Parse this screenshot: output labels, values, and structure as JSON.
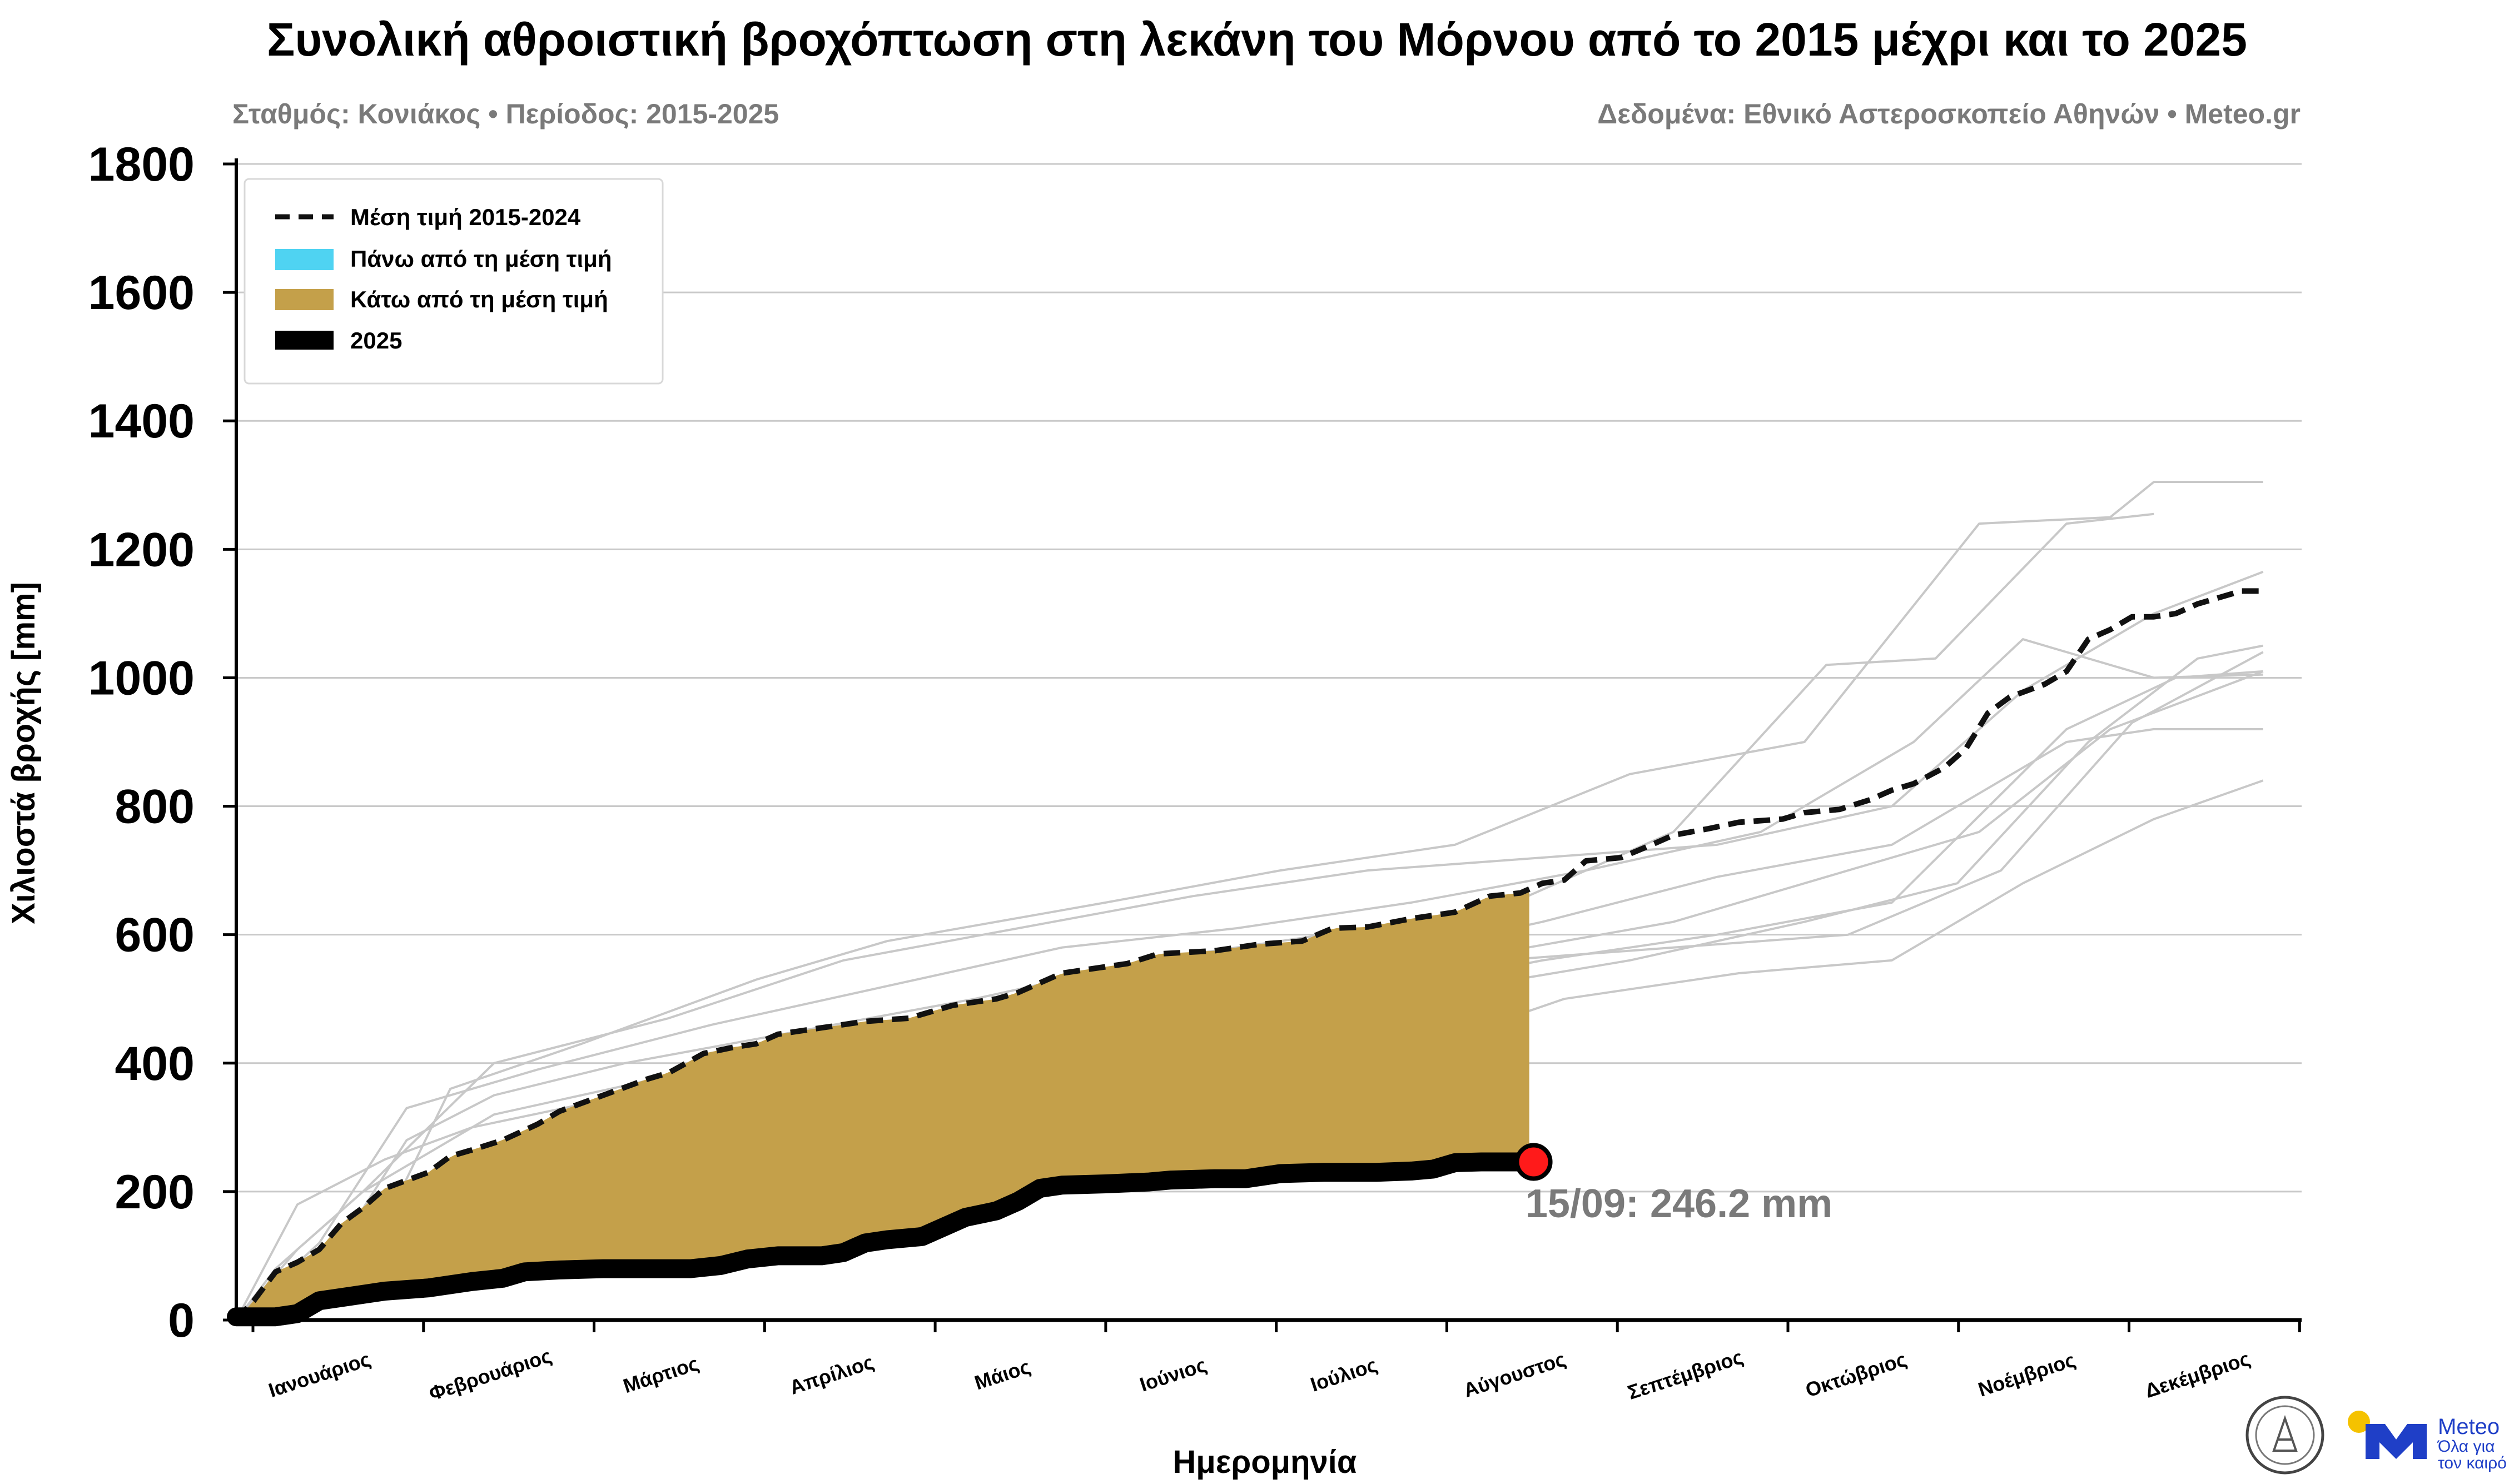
{
  "chart_data": {
    "type": "line",
    "title": "Συνολική αθροιστική βροχόπτωση στη λεκάνη του Μόρνου από το 2015 μέχρι και το 2025",
    "subtitle_left": "Σταθμός: Κονιάκος • Περίοδος: 2015-2025",
    "subtitle_right": "Δεδομένα: Εθνικό Αστεροσκοπείο Αθηνών • Meteo.gr",
    "xlabel": "Ημερομηνία",
    "ylabel": "Χιλιοστά βροχής [mm]",
    "ylim": [
      0,
      1800
    ],
    "yticks": [
      0,
      200,
      400,
      600,
      800,
      1000,
      1200,
      1400,
      1600,
      1800
    ],
    "grid": true,
    "legend_position": "top-left",
    "months": [
      "Ιανουάριος",
      "Φεβρουάριος",
      "Μάρτιος",
      "Απρίλιος",
      "Μάιος",
      "Ιούνιος",
      "Ιούλιος",
      "Αύγουστος",
      "Σεπτέμβριος",
      "Οκτώβριος",
      "Νοέμβριος",
      "Δεκέμβριος"
    ],
    "legend": [
      {
        "label": "Μέση τιμή 2015-2024",
        "style": "dashed",
        "color": "#111111"
      },
      {
        "label": "Πάνω από τη μέση τιμή",
        "style": "patch",
        "color": "#4fd3f2"
      },
      {
        "label": "Κάτω από τη μέση τιμή",
        "style": "patch",
        "color": "#c4a04a"
      },
      {
        "label": "2025",
        "style": "thick",
        "color": "#000000"
      }
    ],
    "mean_series": {
      "name": "Μέση τιμή 2015-2024",
      "points": [
        [
          1,
          0
        ],
        [
          5,
          30
        ],
        [
          10,
          75
        ],
        [
          15,
          90
        ],
        [
          20,
          110
        ],
        [
          25,
          150
        ],
        [
          30,
          175
        ],
        [
          35,
          205
        ],
        [
          45,
          230
        ],
        [
          50,
          255
        ],
        [
          55,
          265
        ],
        [
          62,
          280
        ],
        [
          70,
          305
        ],
        [
          75,
          325
        ],
        [
          85,
          350
        ],
        [
          95,
          375
        ],
        [
          100,
          385
        ],
        [
          108,
          415
        ],
        [
          115,
          425
        ],
        [
          120,
          430
        ],
        [
          125,
          445
        ],
        [
          135,
          455
        ],
        [
          145,
          465
        ],
        [
          155,
          470
        ],
        [
          165,
          490
        ],
        [
          175,
          500
        ],
        [
          180,
          510
        ],
        [
          190,
          540
        ],
        [
          195,
          545
        ],
        [
          205,
          555
        ],
        [
          212,
          570
        ],
        [
          225,
          575
        ],
        [
          235,
          585
        ],
        [
          245,
          590
        ],
        [
          252,
          610
        ],
        [
          260,
          612
        ],
        [
          270,
          625
        ],
        [
          280,
          635
        ],
        [
          288,
          660
        ],
        [
          295,
          665
        ],
        [
          300,
          680
        ],
        [
          305,
          685
        ],
        [
          310,
          715
        ],
        [
          318,
          720
        ],
        [
          325,
          740
        ],
        [
          330,
          755
        ],
        [
          338,
          765
        ],
        [
          345,
          775
        ],
        [
          355,
          780
        ],
        [
          360,
          790
        ],
        [
          368,
          795
        ],
        [
          375,
          810
        ],
        [
          380,
          825
        ],
        [
          385,
          835
        ],
        [
          392,
          860
        ],
        [
          397,
          890
        ],
        [
          402,
          945
        ],
        [
          407,
          970
        ],
        [
          415,
          990
        ],
        [
          420,
          1010
        ],
        [
          425,
          1060
        ],
        [
          430,
          1075
        ],
        [
          435,
          1095
        ],
        [
          440,
          1095
        ],
        [
          445,
          1100
        ],
        [
          450,
          1115
        ],
        [
          455,
          1125
        ],
        [
          460,
          1135
        ],
        [
          465,
          1135
        ]
      ]
    },
    "series_2025": {
      "name": "2025",
      "points": [
        [
          1,
          5
        ],
        [
          10,
          5
        ],
        [
          15,
          10
        ],
        [
          20,
          30
        ],
        [
          30,
          40
        ],
        [
          35,
          45
        ],
        [
          45,
          50
        ],
        [
          50,
          55
        ],
        [
          55,
          60
        ],
        [
          62,
          65
        ],
        [
          67,
          75
        ],
        [
          75,
          78
        ],
        [
          85,
          80
        ],
        [
          95,
          80
        ],
        [
          105,
          80
        ],
        [
          112,
          85
        ],
        [
          118,
          95
        ],
        [
          125,
          100
        ],
        [
          135,
          100
        ],
        [
          140,
          105
        ],
        [
          145,
          120
        ],
        [
          150,
          125
        ],
        [
          158,
          130
        ],
        [
          163,
          145
        ],
        [
          168,
          160
        ],
        [
          175,
          170
        ],
        [
          180,
          185
        ],
        [
          185,
          205
        ],
        [
          190,
          210
        ],
        [
          200,
          212
        ],
        [
          210,
          215
        ],
        [
          215,
          218
        ],
        [
          225,
          220
        ],
        [
          232,
          220
        ],
        [
          237,
          225
        ],
        [
          240,
          228
        ],
        [
          250,
          230
        ],
        [
          262,
          230
        ],
        [
          270,
          232
        ],
        [
          275,
          235
        ],
        [
          280,
          245
        ],
        [
          286,
          246.2
        ],
        [
          298,
          246.2
        ]
      ]
    },
    "highlight": {
      "label": "15/09: 246.2 mm",
      "date": "15/09",
      "value": 246.2,
      "color": "#ff1a1a"
    },
    "past_years": [
      {
        "points": [
          [
            1,
            0
          ],
          [
            20,
            60
          ],
          [
            35,
            150
          ],
          [
            50,
            360
          ],
          [
            80,
            430
          ],
          [
            120,
            530
          ],
          [
            150,
            590
          ],
          [
            200,
            650
          ],
          [
            240,
            700
          ],
          [
            280,
            740
          ],
          [
            320,
            850
          ],
          [
            360,
            900
          ],
          [
            400,
            1240
          ],
          [
            430,
            1250
          ],
          [
            440,
            1305
          ],
          [
            465,
            1305
          ]
        ]
      },
      {
        "points": [
          [
            1,
            0
          ],
          [
            25,
            120
          ],
          [
            40,
            280
          ],
          [
            60,
            350
          ],
          [
            90,
            400
          ],
          [
            130,
            450
          ],
          [
            170,
            500
          ],
          [
            210,
            560
          ],
          [
            250,
            600
          ],
          [
            290,
            640
          ],
          [
            330,
            760
          ],
          [
            365,
            1020
          ],
          [
            390,
            1030
          ],
          [
            420,
            1240
          ],
          [
            440,
            1255
          ]
        ]
      },
      {
        "points": [
          [
            1,
            0
          ],
          [
            15,
            180
          ],
          [
            35,
            250
          ],
          [
            55,
            300
          ],
          [
            90,
            350
          ],
          [
            130,
            410
          ],
          [
            180,
            470
          ],
          [
            220,
            510
          ],
          [
            260,
            560
          ],
          [
            300,
            620
          ],
          [
            340,
            690
          ],
          [
            380,
            740
          ],
          [
            420,
            900
          ],
          [
            440,
            920
          ],
          [
            465,
            920
          ]
        ]
      },
      {
        "points": [
          [
            1,
            0
          ],
          [
            20,
            100
          ],
          [
            45,
            200
          ],
          [
            70,
            260
          ],
          [
            110,
            320
          ],
          [
            150,
            350
          ],
          [
            190,
            400
          ],
          [
            230,
            460
          ],
          [
            270,
            520
          ],
          [
            300,
            560
          ],
          [
            340,
            600
          ],
          [
            380,
            650
          ],
          [
            420,
            920
          ],
          [
            445,
            1000
          ],
          [
            465,
            1010
          ]
        ]
      },
      {
        "points": [
          [
            1,
            0
          ],
          [
            30,
            50
          ],
          [
            55,
            130
          ],
          [
            90,
            220
          ],
          [
            125,
            290
          ],
          [
            165,
            330
          ],
          [
            200,
            360
          ],
          [
            240,
            400
          ],
          [
            275,
            430
          ],
          [
            305,
            500
          ],
          [
            345,
            540
          ],
          [
            380,
            560
          ],
          [
            410,
            680
          ],
          [
            440,
            780
          ],
          [
            465,
            840
          ]
        ]
      },
      {
        "points": [
          [
            1,
            0
          ],
          [
            10,
            80
          ],
          [
            30,
            200
          ],
          [
            60,
            400
          ],
          [
            100,
            470
          ],
          [
            140,
            560
          ],
          [
            180,
            610
          ],
          [
            220,
            660
          ],
          [
            260,
            700
          ],
          [
            300,
            720
          ],
          [
            340,
            740
          ],
          [
            380,
            800
          ],
          [
            410,
            980
          ],
          [
            440,
            1100
          ],
          [
            465,
            1165
          ]
        ]
      },
      {
        "points": [
          [
            1,
            0
          ],
          [
            25,
            60
          ],
          [
            50,
            150
          ],
          [
            80,
            240
          ],
          [
            115,
            300
          ],
          [
            155,
            360
          ],
          [
            200,
            430
          ],
          [
            245,
            480
          ],
          [
            285,
            520
          ],
          [
            320,
            560
          ],
          [
            360,
            620
          ],
          [
            395,
            680
          ],
          [
            425,
            900
          ],
          [
            450,
            1030
          ],
          [
            465,
            1050
          ]
        ]
      },
      {
        "points": [
          [
            1,
            0
          ],
          [
            20,
            30
          ],
          [
            40,
            90
          ],
          [
            75,
            180
          ],
          [
            105,
            280
          ],
          [
            140,
            330
          ],
          [
            175,
            380
          ],
          [
            210,
            450
          ],
          [
            250,
            500
          ],
          [
            290,
            560
          ],
          [
            330,
            580
          ],
          [
            370,
            600
          ],
          [
            405,
            700
          ],
          [
            435,
            930
          ],
          [
            465,
            1040
          ]
        ]
      },
      {
        "points": [
          [
            1,
            0
          ],
          [
            20,
            120
          ],
          [
            40,
            330
          ],
          [
            70,
            390
          ],
          [
            110,
            460
          ],
          [
            150,
            520
          ],
          [
            190,
            580
          ],
          [
            230,
            610
          ],
          [
            270,
            650
          ],
          [
            310,
            700
          ],
          [
            350,
            760
          ],
          [
            385,
            900
          ],
          [
            410,
            1060
          ],
          [
            440,
            1000
          ],
          [
            465,
            1005
          ]
        ]
      },
      {
        "points": [
          [
            1,
            0
          ],
          [
            15,
            110
          ],
          [
            30,
            200
          ],
          [
            60,
            320
          ],
          [
            100,
            380
          ],
          [
            130,
            420
          ],
          [
            170,
            450
          ],
          [
            210,
            480
          ],
          [
            250,
            520
          ],
          [
            280,
            560
          ],
          [
            330,
            620
          ],
          [
            370,
            700
          ],
          [
            400,
            760
          ],
          [
            430,
            920
          ],
          [
            465,
            1010
          ]
        ]
      }
    ]
  },
  "logos": {
    "noa_seal_text": "ΕΘΝΙΚΟ ΑΣΤΕΡΟΣΚΟΠΕΙΟ ΑΘΗΝΩΝ",
    "meteo_name": "Meteo",
    "meteo_tagline_1": "Όλα για",
    "meteo_tagline_2": "τον καιρό",
    "meteo_blue": "#1f3fc7",
    "meteo_yellow": "#f5c200"
  }
}
